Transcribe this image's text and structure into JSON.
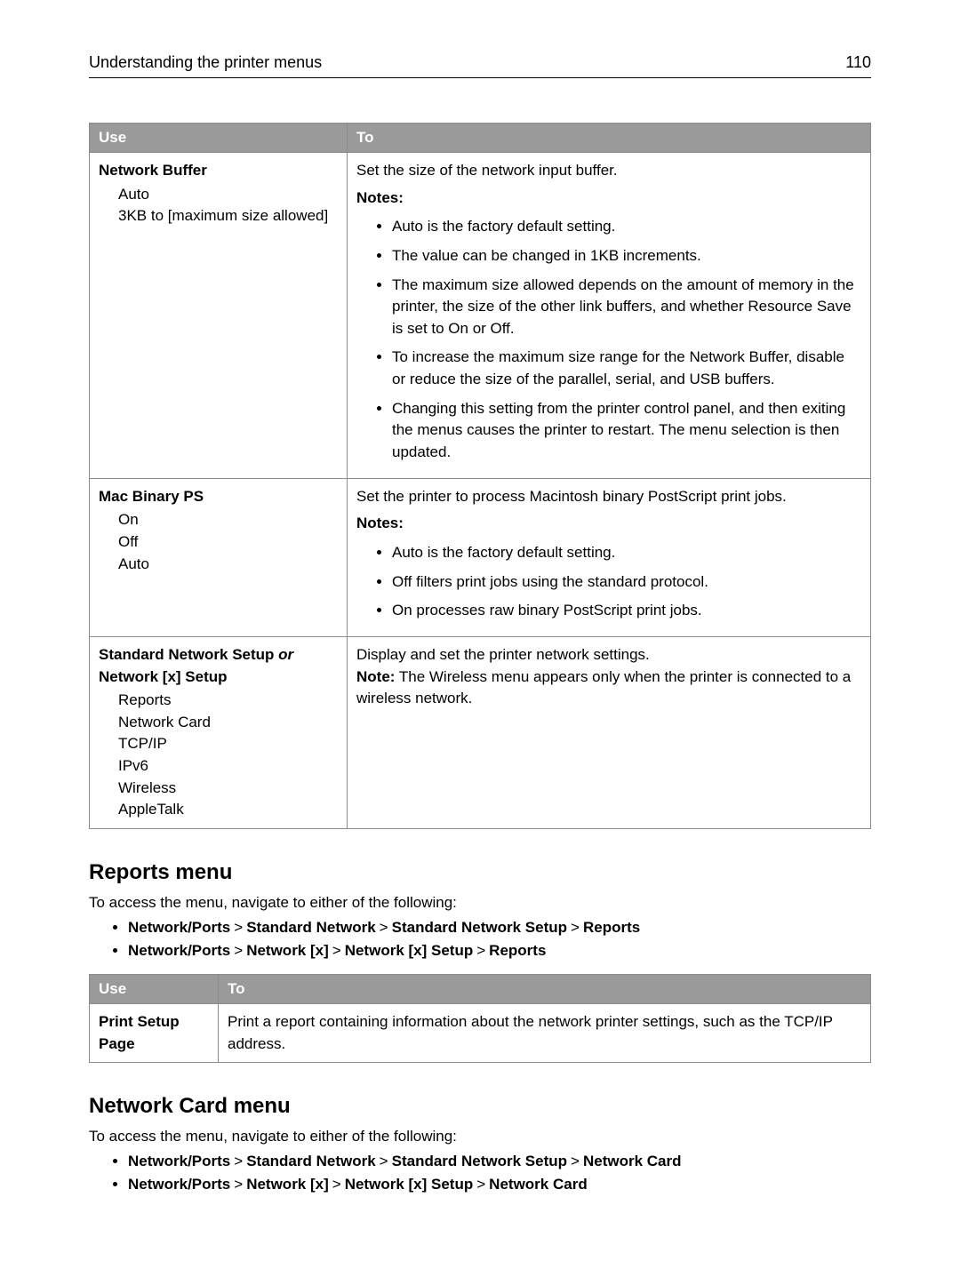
{
  "header": {
    "title": "Understanding the printer menus",
    "page_number": "110"
  },
  "table1": {
    "col_use": "Use",
    "col_to": "To",
    "rows": [
      {
        "title": "Network Buffer",
        "options": [
          "Auto",
          "3KB to [maximum size allowed]"
        ],
        "desc": "Set the size of the network input buffer.",
        "notes_label": "Notes:",
        "notes": [
          "Auto is the factory default setting.",
          "The value can be changed in 1KB increments.",
          "The maximum size allowed depends on the amount of memory in the printer, the size of the other link buffers, and whether Resource Save is set to On or Off.",
          "To increase the maximum size range for the Network Buffer, disable or reduce the size of the parallel, serial, and USB buffers.",
          "Changing this setting from the printer control panel, and then exiting the menus causes the printer to restart. The menu selection is then updated."
        ]
      },
      {
        "title": "Mac Binary PS",
        "options": [
          "On",
          "Off",
          "Auto"
        ],
        "desc": "Set the printer to process Macintosh binary PostScript print jobs.",
        "notes_label": "Notes:",
        "notes": [
          "Auto is the factory default setting.",
          "Off filters print jobs using the standard protocol.",
          "On processes raw binary PostScript print jobs."
        ]
      },
      {
        "title_a": "Standard Network Setup",
        "title_or": "or",
        "title_b": "Network [x] Setup",
        "options": [
          "Reports",
          "Network Card",
          "TCP/IP",
          "IPv6",
          "Wireless",
          "AppleTalk"
        ],
        "desc": "Display and set the printer network settings.",
        "note_label": "Note:",
        "note_text": " The Wireless menu appears only when the printer is connected to a wireless network."
      }
    ]
  },
  "reports_section": {
    "heading": "Reports menu",
    "intro": "To access the menu, navigate to either of the following:",
    "paths": [
      [
        "Network/Ports",
        "Standard Network",
        "Standard Network Setup",
        "Reports"
      ],
      [
        "Network/Ports",
        "Network [x]",
        "Network [x] Setup",
        "Reports"
      ]
    ],
    "table": {
      "col_use": "Use",
      "col_to": "To",
      "row_use": "Print Setup Page",
      "row_to": "Print a report containing information about the network printer settings, such as the TCP/IP address."
    }
  },
  "networkcard_section": {
    "heading": "Network Card menu",
    "intro": "To access the menu, navigate to either of the following:",
    "paths": [
      [
        "Network/Ports",
        "Standard Network",
        "Standard Network Setup",
        "Network Card"
      ],
      [
        "Network/Ports",
        "Network [x]",
        "Network [x] Setup",
        "Network Card"
      ]
    ]
  }
}
